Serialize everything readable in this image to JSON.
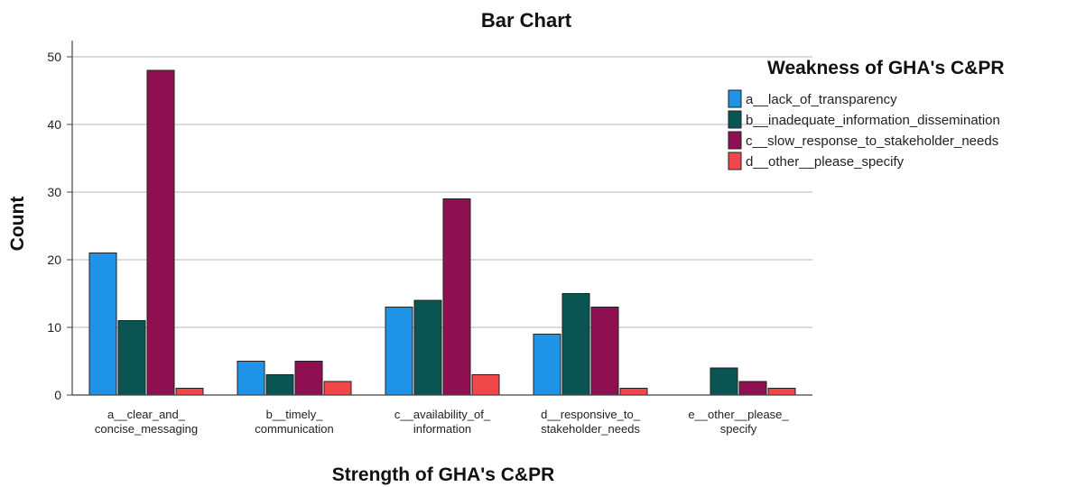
{
  "chart_data": {
    "type": "bar",
    "title": "Bar Chart",
    "xlabel": "Strength of GHA's C&PR",
    "ylabel": "Count",
    "ylim": [
      0,
      52
    ],
    "yticks": [
      0,
      10,
      20,
      30,
      40,
      50
    ],
    "grid": true,
    "legend_title": "Weakness of GHA's C&PR",
    "legend_position": "top-right",
    "categories": [
      [
        "a__clear_and_",
        "concise_messaging"
      ],
      [
        "b__timely_",
        "communication"
      ],
      [
        "c__availability_of_",
        "information"
      ],
      [
        "d__responsive_to_",
        "stakeholder_needs"
      ],
      [
        "e__other__please_",
        "specify"
      ]
    ],
    "series": [
      {
        "name": "a__lack_of_transparency",
        "color": "#1f93e6",
        "values": [
          21,
          5,
          13,
          9,
          0
        ]
      },
      {
        "name": "b__inadequate_information_dissemination",
        "color": "#0a5451",
        "values": [
          11,
          3,
          14,
          15,
          4
        ]
      },
      {
        "name": "c__slow_response_to_stakeholder_needs",
        "color": "#8e1050",
        "values": [
          48,
          5,
          29,
          13,
          2
        ]
      },
      {
        "name": "d__other__please_specify",
        "color": "#f0474a",
        "values": [
          1,
          2,
          3,
          1,
          1
        ]
      }
    ]
  }
}
